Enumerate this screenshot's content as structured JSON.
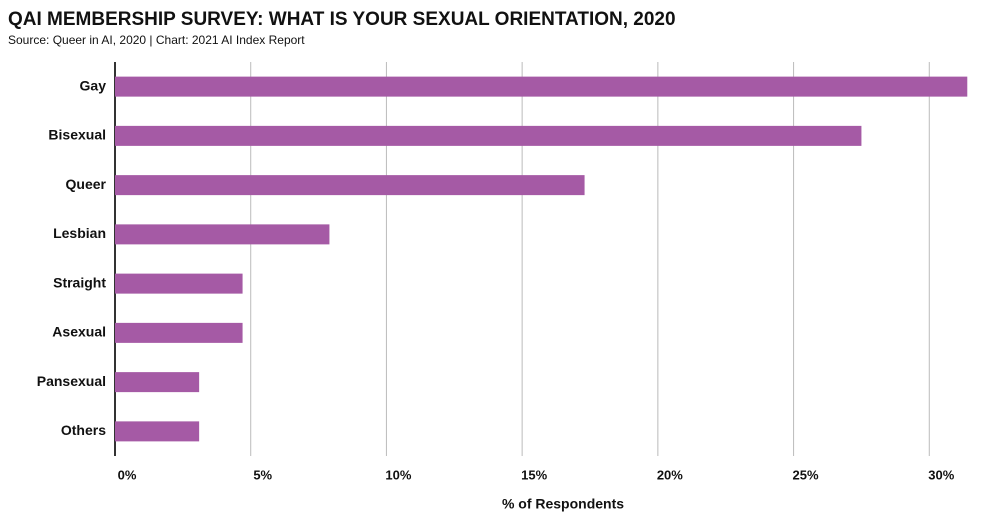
{
  "chart_data": {
    "type": "hbar",
    "title": "QAI MEMBERSHIP SURVEY: WHAT IS YOUR SEXUAL ORIENTATION, 2020",
    "subtitle": "Source: Queer in AI, 2020 | Chart: 2021 AI Index Report",
    "x_label": "% of Respondents",
    "categories": [
      "Gay",
      "Bisexual",
      "Queer",
      "Lesbian",
      "Straight",
      "Asexual",
      "Pansexual",
      "Others"
    ],
    "values": [
      31.4,
      27.5,
      17.3,
      7.9,
      4.7,
      4.7,
      3.1,
      3.1
    ],
    "color": "#a55aa5",
    "xlim": [
      0,
      31.5
    ],
    "xticks": [
      {
        "value": 0,
        "label": "0%"
      },
      {
        "value": 5,
        "label": "5%"
      },
      {
        "value": 10,
        "label": "10%"
      },
      {
        "value": 15,
        "label": "15%"
      },
      {
        "value": 20,
        "label": "20%"
      },
      {
        "value": 25,
        "label": "25%"
      },
      {
        "value": 30,
        "label": "30%"
      }
    ],
    "grid": true
  }
}
